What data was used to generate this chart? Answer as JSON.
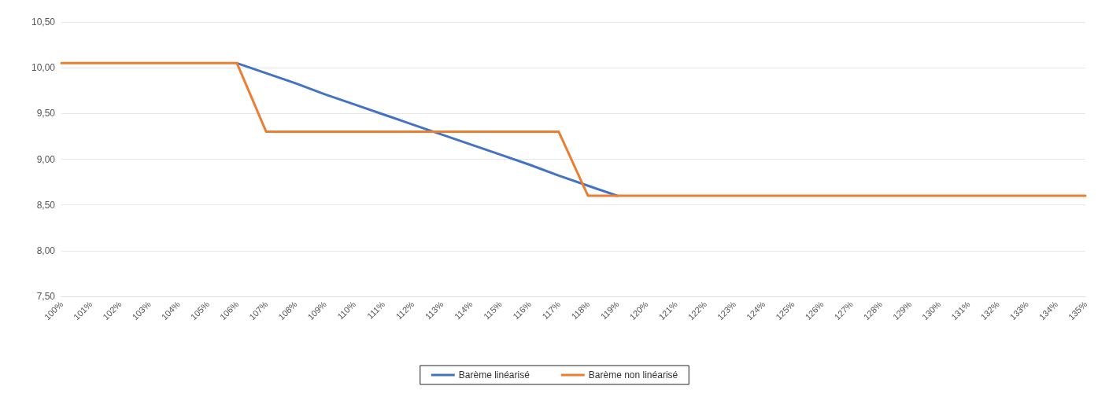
{
  "chart_data": {
    "type": "line",
    "categories": [
      "100%",
      "101%",
      "102%",
      "103%",
      "104%",
      "105%",
      "106%",
      "107%",
      "108%",
      "109%",
      "110%",
      "111%",
      "112%",
      "113%",
      "114%",
      "115%",
      "116%",
      "117%",
      "118%",
      "119%",
      "120%",
      "121%",
      "122%",
      "123%",
      "124%",
      "125%",
      "126%",
      "127%",
      "128%",
      "129%",
      "130%",
      "131%",
      "132%",
      "133%",
      "134%",
      "135%"
    ],
    "series": [
      {
        "name": "Barème linéarisé",
        "color": "#4472c4",
        "values": [
          null,
          null,
          null,
          null,
          null,
          null,
          10.05,
          9.94,
          9.83,
          9.71,
          9.6,
          9.49,
          9.38,
          9.27,
          9.16,
          9.05,
          8.94,
          8.82,
          8.71,
          8.6,
          null,
          null,
          null,
          null,
          null,
          null,
          null,
          null,
          null,
          null,
          null,
          null,
          null,
          null,
          null,
          null
        ]
      },
      {
        "name": "Barème non linéarisé",
        "color": "#ed7d31",
        "values": [
          10.05,
          10.05,
          10.05,
          10.05,
          10.05,
          10.05,
          10.05,
          9.3,
          9.3,
          9.3,
          9.3,
          9.3,
          9.3,
          9.3,
          9.3,
          9.3,
          9.3,
          9.3,
          8.6,
          8.6,
          8.6,
          8.6,
          8.6,
          8.6,
          8.6,
          8.6,
          8.6,
          8.6,
          8.6,
          8.6,
          8.6,
          8.6,
          8.6,
          8.6,
          8.6,
          8.6
        ]
      }
    ],
    "ylim": [
      7.5,
      10.5
    ],
    "yticks": [
      {
        "value": 7.5,
        "label": "7,50"
      },
      {
        "value": 8,
        "label": "8,00"
      },
      {
        "value": 8.5,
        "label": "8,50"
      },
      {
        "value": 9,
        "label": "9,00"
      },
      {
        "value": 9.5,
        "label": "9,50"
      },
      {
        "value": 10,
        "label": "10,00"
      },
      {
        "value": 10.5,
        "label": "10,50"
      }
    ],
    "grid": "y",
    "legend": "bottom",
    "marker": "none",
    "line_style": "solid"
  }
}
